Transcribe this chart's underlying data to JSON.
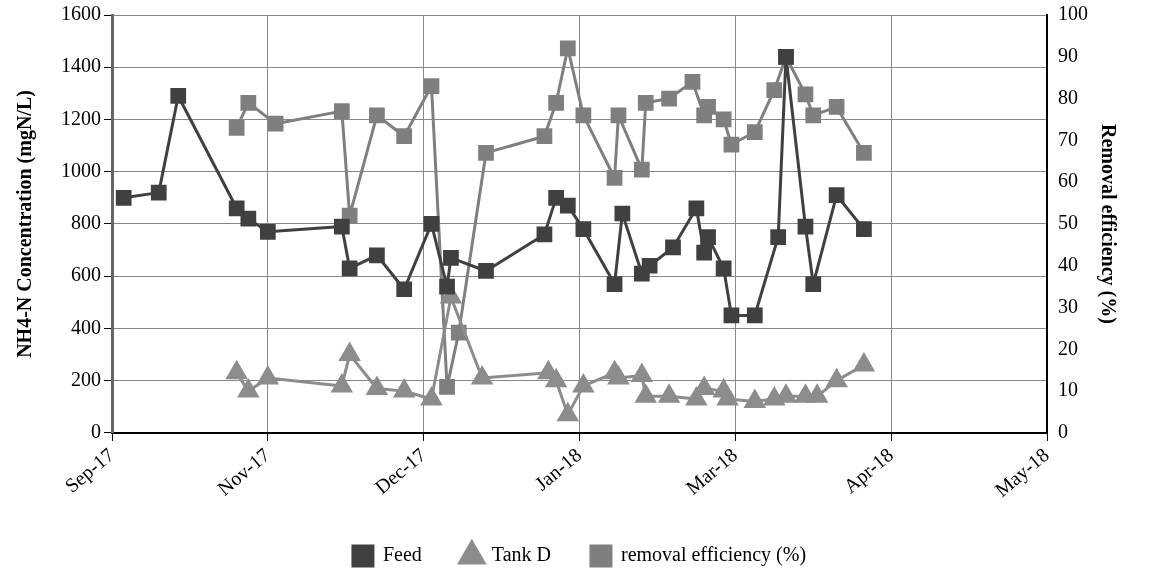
{
  "chart_data": {
    "type": "line",
    "xlabel": null,
    "ylabel": "NH4-N Concentration (mgN/L)",
    "y2label": "Removal efficiency (%)",
    "xlim": [
      "2017-09-27",
      "2018-05-25"
    ],
    "xticks": [
      {
        "value": "2017-09-27",
        "label": "Sep-17"
      },
      {
        "value": "2017-11-06",
        "label": "Nov-17"
      },
      {
        "value": "2017-12-16",
        "label": "Dec-17"
      },
      {
        "value": "2018-01-25",
        "label": "Jan-18"
      },
      {
        "value": "2018-03-06",
        "label": "Mar-18"
      },
      {
        "value": "2018-04-15",
        "label": "Apr-18"
      },
      {
        "value": "2018-05-25",
        "label": "May-18"
      }
    ],
    "ylim": [
      0,
      1600
    ],
    "yticks": [
      0,
      200,
      400,
      600,
      800,
      1000,
      1200,
      1400,
      1600
    ],
    "y2lim": [
      0,
      100
    ],
    "y2ticks": [
      0,
      10,
      20,
      30,
      40,
      50,
      60,
      70,
      80,
      90,
      100
    ],
    "grid": true,
    "legend": "bottom",
    "line_style": "solid",
    "series": [
      {
        "name": "Feed",
        "color": "#404040",
        "marker": "square",
        "x": [
          "2017-09-30",
          "2017-10-09",
          "2017-10-14",
          "2017-10-29",
          "2017-11-01",
          "2017-11-06",
          "2017-11-25",
          "2017-11-27",
          "2017-12-04",
          "2017-12-11",
          "2017-12-18",
          "2017-12-22",
          "2017-12-23",
          "2018-01-01",
          "2018-01-16",
          "2018-01-19",
          "2018-01-22",
          "2018-01-26",
          "2018-02-03",
          "2018-02-05",
          "2018-02-10",
          "2018-02-12",
          "2018-02-18",
          "2018-02-24",
          "2018-02-26",
          "2018-02-27",
          "2018-03-03",
          "2018-03-05",
          "2018-03-11",
          "2018-03-17",
          "2018-03-19",
          "2018-03-24",
          "2018-03-26",
          "2018-04-01",
          "2018-04-08"
        ],
        "values": [
          900,
          920,
          1290,
          860,
          820,
          770,
          790,
          630,
          680,
          550,
          800,
          560,
          670,
          620,
          760,
          900,
          870,
          780,
          570,
          840,
          610,
          640,
          710,
          860,
          690,
          750,
          630,
          450,
          450,
          750,
          1440,
          790,
          570,
          910,
          780
        ]
      },
      {
        "name": "Tank D",
        "color": "#8c8c8c",
        "marker": "triangle",
        "x": [
          "2017-10-29",
          "2017-11-01",
          "2017-11-06",
          "2017-11-25",
          "2017-11-27",
          "2017-12-04",
          "2017-12-11",
          "2017-12-18",
          "2017-12-23",
          "2017-12-31",
          "2018-01-17",
          "2018-01-19",
          "2018-01-22",
          "2018-01-26",
          "2018-02-03",
          "2018-02-04",
          "2018-02-10",
          "2018-02-11",
          "2018-02-17",
          "2018-02-24",
          "2018-02-26",
          "2018-03-03",
          "2018-03-04",
          "2018-03-11",
          "2018-03-16",
          "2018-03-19",
          "2018-03-24",
          "2018-03-27",
          "2018-04-01",
          "2018-04-08"
        ],
        "values": [
          230,
          160,
          210,
          180,
          300,
          170,
          160,
          130,
          520,
          210,
          230,
          200,
          70,
          180,
          230,
          210,
          220,
          140,
          140,
          130,
          170,
          160,
          130,
          120,
          130,
          140,
          140,
          140,
          200,
          260
        ]
      },
      {
        "name": "removal efficiency (%)",
        "color": "#7f7f7f",
        "marker": "square",
        "axis": "y2",
        "x": [
          "2017-10-29",
          "2017-11-01",
          "2017-11-08",
          "2017-11-25",
          "2017-11-27",
          "2017-12-04",
          "2017-12-11",
          "2017-12-18",
          "2017-12-22",
          "2017-12-25",
          "2018-01-01",
          "2018-01-16",
          "2018-01-19",
          "2018-01-22",
          "2018-01-26",
          "2018-02-03",
          "2018-02-04",
          "2018-02-10",
          "2018-02-11",
          "2018-02-17",
          "2018-02-23",
          "2018-02-26",
          "2018-02-27",
          "2018-03-03",
          "2018-03-05",
          "2018-03-11",
          "2018-03-16",
          "2018-03-19",
          "2018-03-24",
          "2018-03-26",
          "2018-04-01",
          "2018-04-08"
        ],
        "values": [
          73,
          79,
          74,
          77,
          52,
          76,
          71,
          83,
          11,
          24,
          67,
          71,
          79,
          92,
          76,
          61,
          76,
          63,
          79,
          80,
          84,
          76,
          78,
          75,
          69,
          72,
          82,
          90,
          81,
          76,
          78,
          67
        ]
      }
    ]
  }
}
